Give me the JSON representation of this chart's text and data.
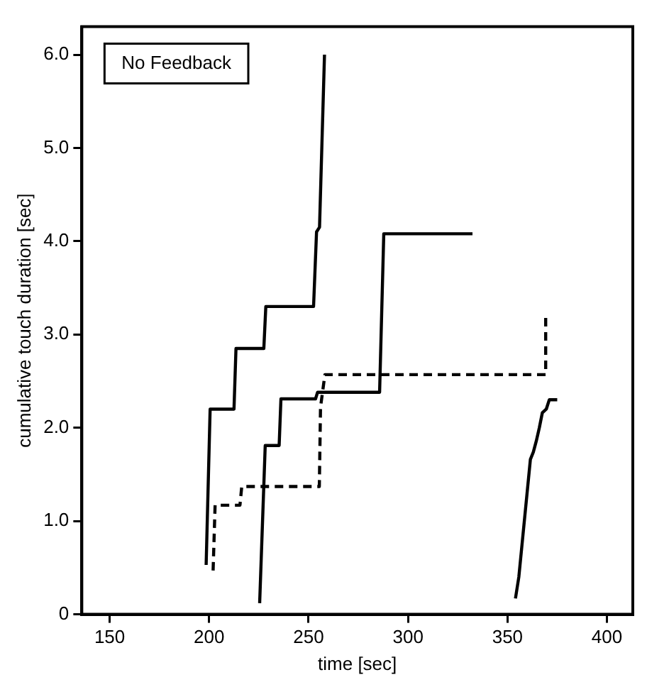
{
  "chart_data": {
    "type": "line",
    "xlabel": "time [sec]",
    "ylabel": "cumulative touch duration [sec]",
    "annotations": [
      "No Feedback"
    ],
    "xlim": [
      136,
      413
    ],
    "ylim": [
      0,
      6.3
    ],
    "xticks": [
      150,
      200,
      250,
      300,
      350,
      400
    ],
    "yticks": [
      0,
      {
        "value": 1,
        "label": "1.0"
      },
      {
        "value": 2,
        "label": "2.0"
      },
      {
        "value": 3,
        "label": "3.0"
      },
      {
        "value": 4,
        "label": "4.0"
      },
      {
        "value": 5,
        "label": "5.0"
      },
      {
        "value": 6,
        "label": "6.0"
      }
    ],
    "grid": false,
    "legend": false,
    "marker": "none",
    "series": [
      {
        "color": "#000000",
        "line_style": "solid",
        "x": [
          198.5,
          200.5,
          212.5,
          213.5,
          227.5,
          228.5,
          252.5,
          254,
          255.5,
          258
        ],
        "values": [
          0.53,
          2.2,
          2.2,
          2.85,
          2.85,
          3.3,
          3.3,
          4.1,
          4.15,
          6.0
        ]
      },
      {
        "color": "#000000",
        "line_style": "dashed",
        "x": [
          202,
          203,
          215.5,
          216.4,
          255.4,
          256,
          258.2,
          369.2,
          369.2
        ],
        "values": [
          0.47,
          1.17,
          1.17,
          1.37,
          1.37,
          2.22,
          2.57,
          2.57,
          3.18
        ]
      },
      {
        "color": "#000000",
        "line_style": "solid",
        "x": [
          225.4,
          228.2,
          235.2,
          236.1,
          253.5,
          254.5,
          285.7,
          287.8,
          332.4
        ],
        "values": [
          0.12,
          1.81,
          1.81,
          2.31,
          2.31,
          2.38,
          2.38,
          4.08,
          4.08
        ]
      },
      {
        "color": "#000000",
        "line_style": "solid",
        "x": [
          354,
          355.7,
          361.5,
          363,
          364.5,
          366,
          367.5,
          369.5,
          371,
          375
        ],
        "values": [
          0.17,
          0.4,
          1.66,
          1.74,
          1.86,
          2.0,
          2.16,
          2.2,
          2.3,
          2.3
        ]
      }
    ]
  }
}
